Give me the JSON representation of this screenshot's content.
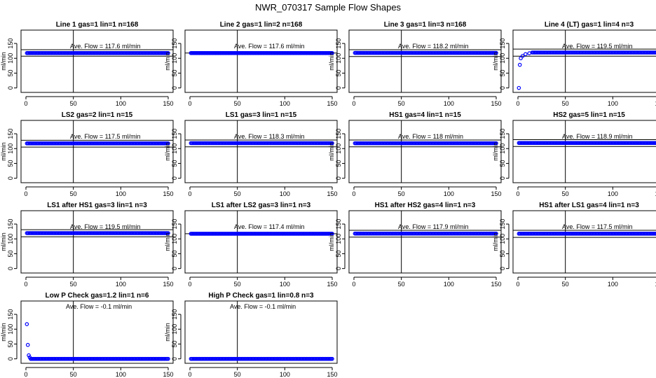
{
  "figure": {
    "title": "NWR_070317  Sample Flow Shapes"
  },
  "layout": {
    "columns": 4,
    "rows": 4
  },
  "style": {
    "point_color": "#0000ff",
    "line_color": "#000000"
  },
  "axis_defaults": {
    "xlim": [
      0,
      150
    ],
    "ylim": [
      -15,
      195
    ],
    "x_ticks": [
      0,
      50,
      100,
      150
    ],
    "y_ticks": [
      0,
      50,
      100,
      150
    ],
    "ylabel": "ml/min",
    "vline_x": 50
  },
  "chart_data": [
    {
      "type": "scatter",
      "title": "Line 1 gas=1 lin=1 n=168",
      "annotation": "Ave. Flow =  117.6  ml/min",
      "hlines": [
        107,
        129
      ],
      "series": [
        {
          "points": [
            [
              1,
              117.6
            ],
            [
              150,
              117.6
            ]
          ],
          "dense_from": 1,
          "dense_to": 150,
          "level": 117.6
        }
      ]
    },
    {
      "type": "scatter",
      "title": "Line 2 gas=1 lin=2 n=168",
      "annotation": "Ave. Flow =  117.6  ml/min",
      "hlines": [
        117.6
      ],
      "series": [
        {
          "dense_from": 1,
          "dense_to": 150,
          "level": 117.6
        }
      ]
    },
    {
      "type": "scatter",
      "title": "Line 3 gas=1 lin=3 n=168",
      "annotation": "Ave. Flow =  118.2  ml/min",
      "hlines": [
        106,
        129
      ],
      "series": [
        {
          "dense_from": 1,
          "dense_to": 150,
          "level": 118.2
        }
      ]
    },
    {
      "type": "scatter",
      "title": "Line 4 (LT) gas=1 lin=4 n=3",
      "annotation": "Ave. Flow =  119.5  ml/min",
      "hlines": [
        107,
        131
      ],
      "series": [
        {
          "sparse": [
            [
              1,
              0
            ],
            [
              2,
              78
            ],
            [
              3,
              100
            ],
            [
              5,
              108
            ],
            [
              8,
              114
            ],
            [
              12,
              117
            ]
          ],
          "dense_from": 15,
          "dense_to": 150,
          "level": 119.5
        }
      ]
    },
    {
      "type": "scatter",
      "title": "LS2 gas=2 lin=1 n=15",
      "annotation": "Ave. Flow =  117.5  ml/min",
      "hlines": [
        105,
        128
      ],
      "series": [
        {
          "dense_from": 1,
          "dense_to": 150,
          "level": 117.5
        }
      ]
    },
    {
      "type": "scatter",
      "title": "LS1 gas=3 lin=1 n=15",
      "annotation": "Ave. Flow =  118.3  ml/min",
      "hlines": [
        106,
        129
      ],
      "series": [
        {
          "dense_from": 1,
          "dense_to": 150,
          "level": 118.3
        }
      ]
    },
    {
      "type": "scatter",
      "title": "HS1 gas=4 lin=1 n=15",
      "annotation": "Ave. Flow =  118  ml/min",
      "hlines": [
        106,
        129
      ],
      "series": [
        {
          "dense_from": 1,
          "dense_to": 150,
          "level": 118
        }
      ]
    },
    {
      "type": "scatter",
      "title": "HS2 gas=5 lin=1 n=15",
      "annotation": "Ave. Flow =  118.9  ml/min",
      "hlines": [
        107,
        130
      ],
      "series": [
        {
          "dense_from": 1,
          "dense_to": 150,
          "level": 118.9
        }
      ]
    },
    {
      "type": "scatter",
      "title": "LS1 after HS1 gas=3 lin=1 n=3",
      "annotation": "Ave. Flow =  119.5  ml/min",
      "hlines": [
        107,
        131
      ],
      "series": [
        {
          "dense_from": 1,
          "dense_to": 150,
          "level": 119.5
        }
      ]
    },
    {
      "type": "scatter",
      "title": "LS1 after LS2 gas=3 lin=1 n=3",
      "annotation": "Ave. Flow =  117.4  ml/min",
      "hlines": [
        117.4
      ],
      "series": [
        {
          "dense_from": 1,
          "dense_to": 150,
          "level": 117.4
        }
      ]
    },
    {
      "type": "scatter",
      "title": "HS1 after HS2 gas=4 lin=1 n=3",
      "annotation": "Ave. Flow =  117.9  ml/min",
      "hlines": [
        106,
        129
      ],
      "series": [
        {
          "dense_from": 1,
          "dense_to": 150,
          "level": 117.9
        }
      ]
    },
    {
      "type": "scatter",
      "title": "HS1 after LS1 gas=4 lin=1 n=3",
      "annotation": "Ave. Flow =  117.5  ml/min",
      "hlines": [
        105,
        129
      ],
      "series": [
        {
          "dense_from": 1,
          "dense_to": 150,
          "level": 117.5
        }
      ]
    },
    {
      "type": "scatter",
      "title": "Low P Check gas=1.2 lin=1 n=6",
      "annotation": "Ave. Flow =  -0.1  ml/min",
      "hlines": [],
      "series": [
        {
          "sparse": [
            [
              1,
              117
            ],
            [
              2,
              47
            ],
            [
              3,
              12
            ],
            [
              4,
              5
            ]
          ],
          "dense_from": 5,
          "dense_to": 150,
          "level": 0
        }
      ]
    },
    {
      "type": "scatter",
      "title": "High P Check gas=1 lin=0.8 n=3",
      "annotation": "Ave. Flow =  -0.1  ml/min",
      "hlines": [],
      "series": [
        {
          "dense_from": 1,
          "dense_to": 150,
          "level": 0
        }
      ]
    }
  ]
}
